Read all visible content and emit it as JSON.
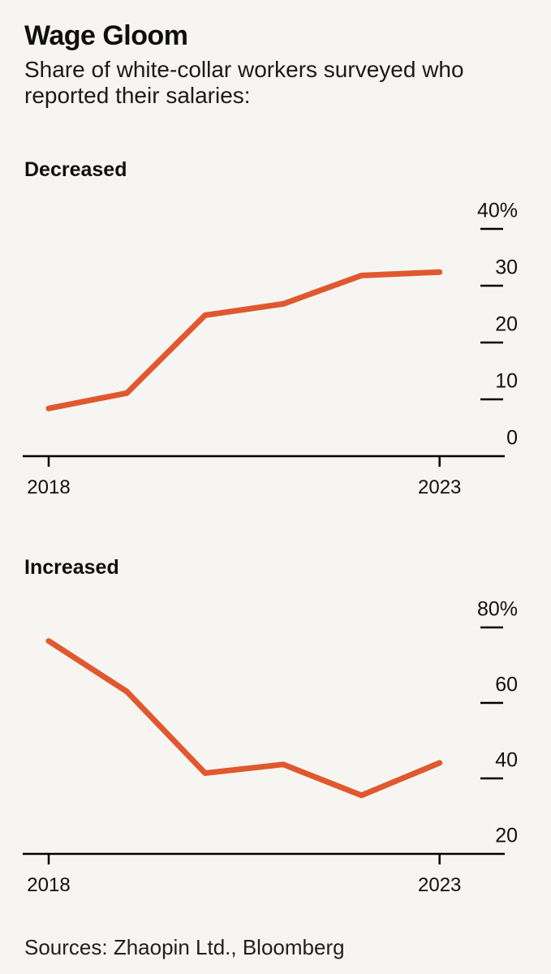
{
  "header": {
    "title": "Wage Gloom",
    "subtitle_lines": [
      "Share of white-collar workers surveyed who",
      "reported their salaries:"
    ]
  },
  "footer": {
    "sources": "Sources: Zhaopin Ltd., Bloomberg"
  },
  "colors": {
    "background": "#f7f5f2",
    "line": "#e0582f",
    "axis": "#000000",
    "text": "#111111"
  },
  "chart_data": [
    {
      "type": "line",
      "section_label": "Decreased",
      "title": "Decreased",
      "unit": "%",
      "x": [
        2018,
        2019,
        2020,
        2021,
        2022,
        2023
      ],
      "values": [
        8.4,
        11.1,
        24.8,
        26.8,
        31.8,
        32.4
      ],
      "ylim": [
        0,
        42
      ],
      "grid": "off",
      "legend": "none",
      "y_ticks": [
        {
          "label": "40%",
          "value": 40
        },
        {
          "label": "30",
          "value": 30
        },
        {
          "label": "20",
          "value": 20
        },
        {
          "label": "10",
          "value": 10
        },
        {
          "label": "0",
          "value": 0
        }
      ],
      "x_axis_labels": [
        {
          "label": "2018",
          "year": 2018
        },
        {
          "label": "2023",
          "year": 2023
        }
      ]
    },
    {
      "type": "line",
      "section_label": "Increased",
      "title": "Increased",
      "unit": "%",
      "x": [
        2018,
        2019,
        2020,
        2021,
        2022,
        2023
      ],
      "values": [
        76.4,
        63.0,
        41.4,
        43.7,
        35.5,
        44.1
      ],
      "ylim": [
        20,
        84
      ],
      "grid": "off",
      "legend": "none",
      "y_ticks": [
        {
          "label": "80%",
          "value": 80
        },
        {
          "label": "60",
          "value": 60
        },
        {
          "label": "40",
          "value": 40
        },
        {
          "label": "20",
          "value": 20
        }
      ],
      "x_axis_labels": [
        {
          "label": "2018",
          "year": 2018
        },
        {
          "label": "2023",
          "year": 2023
        }
      ]
    }
  ]
}
